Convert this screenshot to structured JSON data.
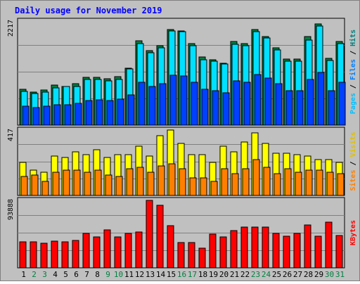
{
  "chart_data": {
    "type": "bar",
    "title": "Daily usage for November 2019",
    "categories": [
      "1",
      "2",
      "3",
      "4",
      "5",
      "6",
      "7",
      "8",
      "9",
      "10",
      "11",
      "12",
      "13",
      "14",
      "15",
      "16",
      "17",
      "18",
      "19",
      "20",
      "21",
      "22",
      "23",
      "24",
      "25",
      "26",
      "27",
      "28",
      "29",
      "30",
      "31"
    ],
    "weekend_days": [
      "2",
      "3",
      "9",
      "10",
      "16",
      "17",
      "23",
      "24",
      "30",
      "31"
    ],
    "panels": [
      {
        "name": "hits-files-pages",
        "max_label": "2217",
        "ylim": [
          0,
          2217
        ],
        "series": [
          {
            "name": "Hits",
            "color": "#008040",
            "values": [
              760,
              700,
              750,
              850,
              830,
              880,
              1020,
              1020,
              990,
              1040,
              1210,
              1800,
              1590,
              1700,
              2030,
              2010,
              1740,
              1450,
              1400,
              1320,
              1790,
              1740,
              2040,
              1880,
              1650,
              1410,
              1410,
              1880,
              2160,
              1420,
              1780
            ]
          },
          {
            "name": "Files",
            "color": "#00e0ff",
            "values": [
              720,
              670,
              700,
              790,
              820,
              830,
              980,
              970,
              950,
              980,
              1200,
              1740,
              1540,
              1650,
              2000,
              1990,
              1700,
              1400,
              1370,
              1300,
              1730,
              1700,
              1990,
              1850,
              1600,
              1370,
              1370,
              1820,
              2110,
              1380,
              1740
            ]
          },
          {
            "name": "Pages",
            "color": "#0040ff",
            "values": [
              410,
              380,
              400,
              440,
              430,
              460,
              530,
              540,
              520,
              550,
              640,
              920,
              820,
              880,
              1060,
              1050,
              920,
              760,
              730,
              690,
              950,
              920,
              1080,
              1000,
              880,
              730,
              740,
              980,
              1130,
              740,
              920
            ]
          }
        ],
        "legend": [
          "Pages",
          "Files",
          "Hits"
        ]
      },
      {
        "name": "visits-sites",
        "max_label": "417",
        "ylim": [
          0,
          417
        ],
        "series": [
          {
            "name": "Visits",
            "color": "#ffff00",
            "values": [
              210,
              160,
              150,
              250,
              240,
              280,
              260,
              290,
              240,
              260,
              260,
              316,
              250,
              380,
              417,
              330,
              260,
              260,
              210,
              316,
              280,
              340,
              400,
              330,
              270,
              270,
              260,
              250,
              230,
              228,
              210
            ]
          },
          {
            "name": "Sites",
            "color": "#ff8000",
            "values": [
              120,
              130,
              90,
              150,
              160,
              160,
              150,
              160,
              130,
              120,
              170,
              180,
              150,
              190,
              200,
              170,
              110,
              110,
              90,
              170,
              140,
              170,
              230,
              180,
              140,
              170,
              150,
              160,
              160,
              150,
              140
            ]
          }
        ],
        "legend": [
          "Sites",
          "Visits"
        ]
      },
      {
        "name": "kbytes",
        "max_label": "93888",
        "ylim": [
          0,
          93888
        ],
        "series": [
          {
            "name": "KBytes",
            "color": "#ff0000",
            "values": [
              36500,
              35700,
              33800,
              37200,
              36100,
              38400,
              47900,
              43200,
              52400,
              43200,
              48400,
              49700,
              93800,
              86800,
              58400,
              35600,
              35600,
              27800,
              46500,
              43400,
              51600,
              56300,
              56400,
              56400,
              47800,
              44300,
              47900,
              59400,
              44200,
              63600,
              45000
            ]
          }
        ],
        "legend": [
          "KBytes"
        ]
      }
    ]
  }
}
